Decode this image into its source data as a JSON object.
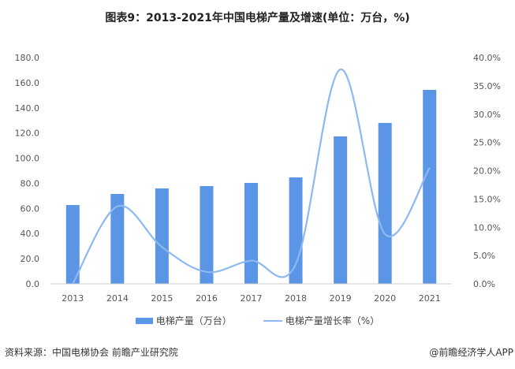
{
  "chart_data": {
    "type": "bar+line",
    "title": "图表9：2013-2021年中国电梯产量及增速(单位：万台，%)",
    "categories": [
      "2013",
      "2014",
      "2015",
      "2016",
      "2017",
      "2018",
      "2019",
      "2020",
      "2021"
    ],
    "series": [
      {
        "name": "电梯产量（万台）",
        "type": "bar",
        "axis": "left",
        "color": "#5b96e6",
        "values": [
          62.7,
          71.5,
          75.9,
          77.8,
          80.3,
          84.7,
          117.3,
          128.0,
          154.3
        ]
      },
      {
        "name": "电梯产量增长率（%）",
        "type": "line",
        "smooth": true,
        "axis": "right",
        "color": "#8db8f0",
        "values": [
          0.0,
          13.7,
          6.5,
          2.1,
          4.1,
          3.5,
          37.9,
          8.8,
          20.5
        ]
      }
    ],
    "left_axis": {
      "ylim": [
        0,
        180
      ],
      "ticks": [
        "0.0",
        "20.0",
        "40.0",
        "60.0",
        "80.0",
        "100.0",
        "120.0",
        "140.0",
        "160.0",
        "180.0"
      ]
    },
    "right_axis": {
      "ylim": [
        0,
        40
      ],
      "ticks": [
        "0.0%",
        "5.0%",
        "10.0%",
        "15.0%",
        "20.0%",
        "25.0%",
        "30.0%",
        "35.0%",
        "40.0%"
      ]
    },
    "grid": false,
    "legend_placement": "bottom"
  },
  "footer": {
    "source": "资料来源：中国电梯协会 前瞻产业研究院",
    "credit": "@前瞻经济学人APP"
  }
}
